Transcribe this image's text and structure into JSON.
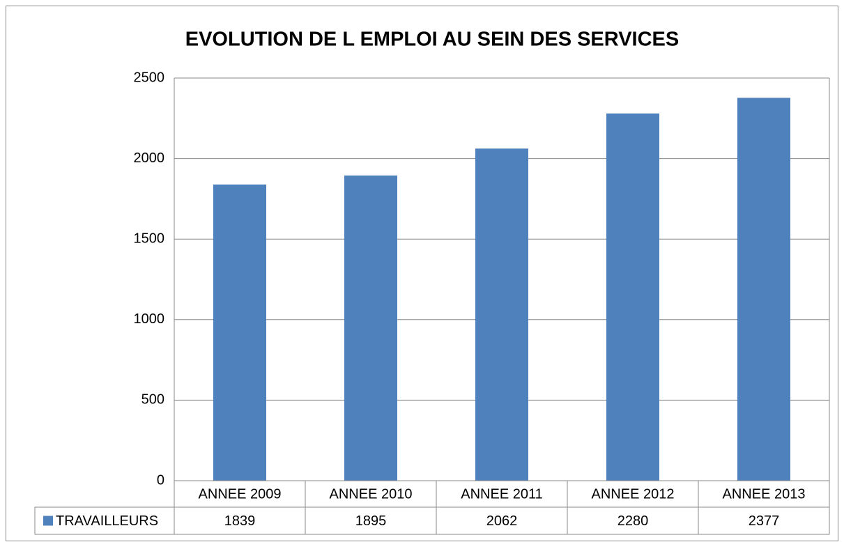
{
  "chart_data": {
    "type": "bar",
    "title": "EVOLUTION DE L EMPLOI AU SEIN DES SERVICES",
    "categories": [
      "ANNEE 2009",
      "ANNEE 2010",
      "ANNEE 2011",
      "ANNEE 2012",
      "ANNEE 2013"
    ],
    "series": [
      {
        "name": "TRAVAILLEURS",
        "color": "#4f81bd",
        "values": [
          1839,
          1895,
          2062,
          2280,
          2377
        ]
      }
    ],
    "ylim": [
      0,
      2500
    ],
    "yticks": [
      0,
      500,
      1000,
      1500,
      2000,
      2500
    ],
    "grid": true,
    "data_table": true
  }
}
